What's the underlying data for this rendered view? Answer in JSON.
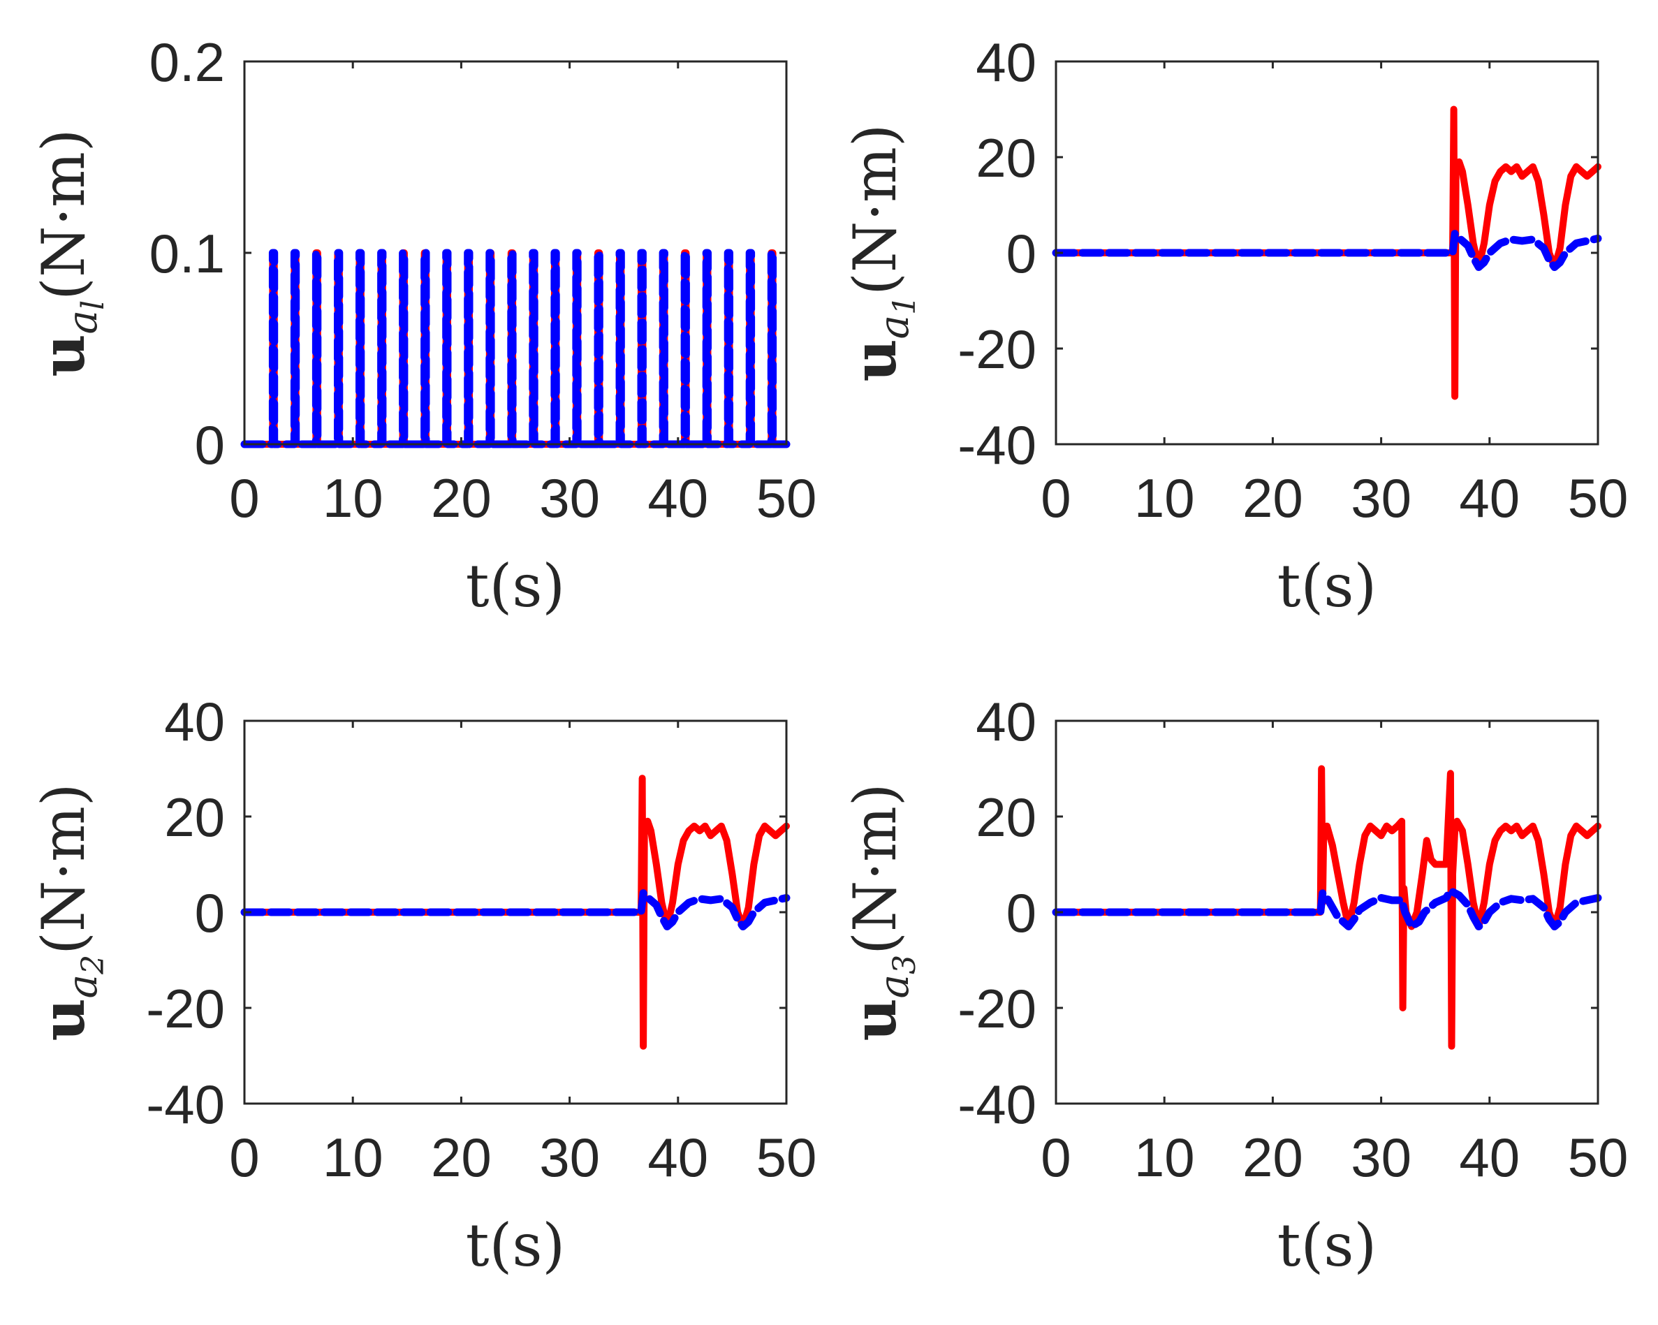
{
  "colors": {
    "series_solid": "#ff0000",
    "series_dashed": "#0000ff",
    "axes": "#262626"
  },
  "chart_data": [
    {
      "type": "line",
      "panel": "top-left",
      "xlabel": {
        "main": "t(s)"
      },
      "ylabel": {
        "bold": "u",
        "sub": "a",
        "subsub": "l",
        "unit": "(N·m)"
      },
      "xlim": [
        0,
        50
      ],
      "ylim": [
        0,
        0.2
      ],
      "xticks": [
        "0",
        "10",
        "20",
        "30",
        "40",
        "50"
      ],
      "yticks": [
        "0",
        "0.1",
        "0.2"
      ],
      "ytick_values": [
        0,
        0.1,
        0.2
      ],
      "series": [
        {
          "name": "solid",
          "style": "solid",
          "color": "#ff0000",
          "pulse_times": [
            2.6,
            4.6,
            6.6,
            8.6,
            10.6,
            12.6,
            14.6,
            16.6,
            18.6,
            20.6,
            22.6,
            24.6,
            26.6,
            28.6,
            30.6,
            32.6,
            34.6,
            36.6,
            38.6,
            40.6,
            42.6,
            44.6,
            46.6,
            48.6
          ],
          "pulse_value": 0.1,
          "base_value": 0
        },
        {
          "name": "dashed",
          "style": "dashed",
          "color": "#0000ff",
          "pulse_times": [
            2.6,
            4.6,
            6.6,
            8.6,
            10.6,
            12.6,
            14.6,
            16.6,
            18.6,
            20.6,
            22.6,
            24.6,
            26.6,
            28.6,
            30.6,
            32.6,
            34.6,
            36.6,
            38.6,
            40.6,
            42.6,
            44.6,
            46.6,
            48.6
          ],
          "pulse_value": 0.1,
          "base_value": 0
        }
      ]
    },
    {
      "type": "line",
      "panel": "top-right",
      "xlabel": {
        "main": "t(s)"
      },
      "ylabel": {
        "bold": "u",
        "sub": "a",
        "subsub": "1",
        "unit": "(N·m)"
      },
      "xlim": [
        0,
        50
      ],
      "ylim": [
        -40,
        40
      ],
      "xticks": [
        "0",
        "10",
        "20",
        "30",
        "40",
        "50"
      ],
      "yticks": [
        "-40",
        "-20",
        "0",
        "20",
        "40"
      ],
      "ytick_values": [
        -40,
        -20,
        0,
        20,
        40
      ],
      "series": [
        {
          "name": "solid",
          "style": "solid",
          "color": "#ff0000",
          "x": [
            0,
            36.6,
            36.7,
            36.8,
            36.9,
            37.0,
            37.2,
            37.5,
            38.0,
            38.5,
            39.0,
            39.5,
            40.0,
            40.5,
            41.0,
            41.5,
            42.0,
            42.5,
            43.0,
            43.5,
            44.0,
            44.5,
            45.0,
            45.5,
            46.0,
            46.5,
            47.0,
            47.5,
            48.0,
            48.5,
            49.0,
            49.5,
            50
          ],
          "y": [
            0,
            0,
            30,
            -30,
            17,
            18,
            19,
            17,
            10,
            2,
            -3,
            2,
            10,
            15,
            17,
            18,
            17,
            18,
            16,
            17,
            18,
            15,
            8,
            0,
            -3,
            1,
            10,
            16,
            18,
            17,
            16,
            17,
            18
          ]
        },
        {
          "name": "dashed",
          "style": "dashed",
          "color": "#0000ff",
          "x": [
            0,
            36.6,
            36.8,
            37.0,
            37.5,
            38.0,
            38.5,
            39.0,
            39.5,
            40.0,
            41.0,
            42.0,
            43.0,
            44.0,
            45.0,
            45.5,
            46.0,
            46.5,
            47.0,
            48.0,
            49.0,
            50
          ],
          "y": [
            0,
            0,
            4,
            3.5,
            2.5,
            1.5,
            -1,
            -3,
            -2,
            0,
            2,
            2.8,
            2.5,
            2.8,
            1,
            -1.5,
            -3,
            -2,
            0,
            2,
            2.5,
            3
          ]
        }
      ]
    },
    {
      "type": "line",
      "panel": "bottom-left",
      "xlabel": {
        "main": "t(s)"
      },
      "ylabel": {
        "bold": "u",
        "sub": "a",
        "subsub": "2",
        "unit": "(N·m)"
      },
      "xlim": [
        0,
        50
      ],
      "ylim": [
        -40,
        40
      ],
      "xticks": [
        "0",
        "10",
        "20",
        "30",
        "40",
        "50"
      ],
      "yticks": [
        "-40",
        "-20",
        "0",
        "20",
        "40"
      ],
      "ytick_values": [
        -40,
        -20,
        0,
        20,
        40
      ],
      "series": [
        {
          "name": "solid",
          "style": "solid",
          "color": "#ff0000",
          "x": [
            0,
            36.6,
            36.7,
            36.8,
            36.9,
            37.0,
            37.2,
            37.5,
            38.0,
            38.5,
            39.0,
            39.5,
            40.0,
            40.5,
            41.0,
            41.5,
            42.0,
            42.5,
            43.0,
            43.5,
            44.0,
            44.5,
            45.0,
            45.5,
            46.0,
            46.5,
            47.0,
            47.5,
            48.0,
            48.5,
            49.0,
            49.5,
            50
          ],
          "y": [
            0,
            0,
            28,
            -28,
            17,
            18,
            19,
            17,
            10,
            2,
            -3,
            2,
            10,
            15,
            17,
            18,
            17,
            18,
            16,
            17,
            18,
            15,
            8,
            0,
            -3,
            1,
            10,
            16,
            18,
            17,
            16,
            17,
            18
          ]
        },
        {
          "name": "dashed",
          "style": "dashed",
          "color": "#0000ff",
          "x": [
            0,
            36.6,
            36.8,
            37.0,
            37.5,
            38.0,
            38.5,
            39.0,
            39.5,
            40.0,
            41.0,
            42.0,
            43.0,
            44.0,
            45.0,
            45.5,
            46.0,
            46.5,
            47.0,
            48.0,
            49.0,
            50
          ],
          "y": [
            0,
            0,
            4,
            3.5,
            2.5,
            1.5,
            -1,
            -3,
            -2,
            0,
            2,
            2.8,
            2.5,
            2.8,
            1,
            -1.5,
            -3,
            -2,
            0,
            2,
            2.5,
            3
          ]
        }
      ]
    },
    {
      "type": "line",
      "panel": "bottom-right",
      "xlabel": {
        "main": "t(s)"
      },
      "ylabel": {
        "bold": "u",
        "sub": "a",
        "subsub": "3",
        "unit": "(N·m)"
      },
      "xlim": [
        0,
        50
      ],
      "ylim": [
        -40,
        40
      ],
      "xticks": [
        "0",
        "10",
        "20",
        "30",
        "40",
        "50"
      ],
      "yticks": [
        "-40",
        "-20",
        "0",
        "20",
        "40"
      ],
      "ytick_values": [
        -40,
        -20,
        0,
        20,
        40
      ],
      "series": [
        {
          "name": "solid",
          "style": "solid",
          "color": "#ff0000",
          "x": [
            0,
            24.4,
            24.5,
            24.6,
            24.7,
            25.0,
            25.5,
            26.0,
            26.5,
            27.0,
            27.5,
            28.0,
            28.5,
            29.0,
            29.5,
            30.0,
            30.5,
            31.0,
            31.5,
            31.9,
            32.0,
            32.1,
            32.3,
            32.8,
            33.3,
            33.8,
            34.2,
            34.6,
            35.0,
            35.5,
            36.0,
            36.4,
            36.5,
            36.6,
            36.8,
            37.0,
            37.5,
            38.0,
            38.5,
            39.0,
            39.5,
            40.0,
            40.5,
            41.0,
            41.5,
            42.0,
            42.5,
            43.0,
            43.5,
            44.0,
            44.5,
            45.0,
            45.5,
            46.0,
            46.5,
            47.0,
            47.5,
            48.0,
            48.5,
            49.0,
            49.5,
            50
          ],
          "y": [
            0,
            0,
            30,
            2,
            17,
            18,
            14,
            8,
            2,
            -3,
            2,
            10,
            16,
            18,
            17,
            16,
            18,
            17,
            18,
            19,
            -20,
            5,
            0,
            -3,
            0,
            8,
            15,
            11,
            10,
            10,
            10,
            29,
            -28,
            8,
            17,
            19,
            17,
            10,
            2,
            -3,
            2,
            10,
            15,
            17,
            18,
            17,
            18,
            16,
            17,
            18,
            15,
            8,
            0,
            -3,
            1,
            10,
            16,
            18,
            17,
            16,
            17,
            18
          ]
        },
        {
          "name": "dashed",
          "style": "dashed",
          "color": "#0000ff",
          "x": [
            0,
            24.4,
            24.6,
            25.0,
            25.5,
            26.0,
            26.5,
            27.0,
            27.5,
            28.0,
            29.0,
            30.0,
            31.0,
            31.9,
            32.2,
            32.8,
            33.5,
            34.0,
            35.0,
            36.0,
            36.4,
            36.8,
            37.2,
            38.0,
            38.5,
            39.0,
            39.5,
            40.0,
            41.0,
            42.0,
            43.0,
            44.0,
            45.0,
            45.5,
            46.0,
            46.5,
            47.0,
            48.0,
            49.0,
            50
          ],
          "y": [
            0,
            0,
            4,
            3,
            1,
            -1,
            -2,
            -3,
            -1.5,
            0.5,
            2,
            3,
            2.5,
            2.5,
            0,
            -3,
            -2,
            0,
            2,
            3,
            4.5,
            4,
            3.5,
            1.5,
            -1,
            -3,
            -2,
            0,
            2,
            2.8,
            2.5,
            2.8,
            1,
            -1.5,
            -3,
            -2,
            0,
            2,
            2.5,
            3
          ]
        }
      ]
    }
  ]
}
